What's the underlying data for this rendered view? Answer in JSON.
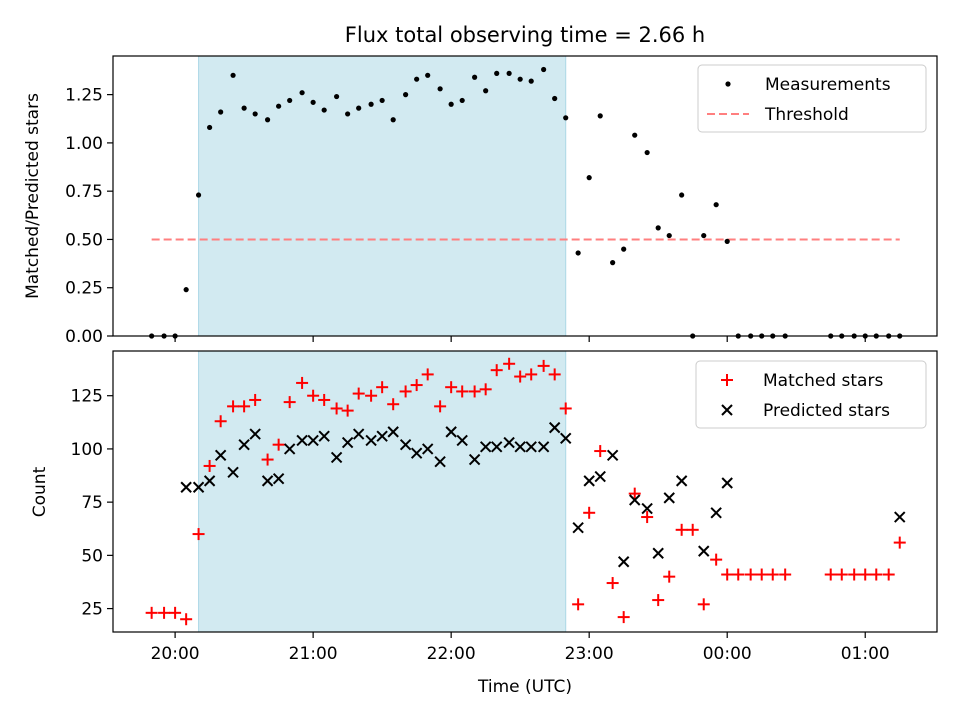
{
  "chart_data": {
    "type": "scatter",
    "title": "Flux total observing time = 2.66 h",
    "xlabel": "Time (UTC)",
    "x_unit": "hours UTC (values past 24 are after midnight)",
    "xlim": [
      19.55,
      25.52
    ],
    "xticks": [
      {
        "value": 20,
        "label": "20:00"
      },
      {
        "value": 21,
        "label": "21:00"
      },
      {
        "value": 22,
        "label": "22:00"
      },
      {
        "value": 23,
        "label": "23:00"
      },
      {
        "value": 24,
        "label": "00:00"
      },
      {
        "value": 25,
        "label": "01:00"
      }
    ],
    "observing_window": [
      20.17,
      22.83
    ],
    "shade_color": "#add8e6",
    "top_panel": {
      "ylabel": "Matched/Predicted stars",
      "ylim": [
        0,
        1.45
      ],
      "yticks": [
        0,
        0.25,
        0.5,
        0.75,
        1.0,
        1.25
      ],
      "ytick_labels": [
        "0.00",
        "0.25",
        "0.50",
        "0.75",
        "1.00",
        "1.25"
      ],
      "legend_position": "upper right",
      "threshold": {
        "name": "Threshold",
        "value": 0.5,
        "x_range": [
          19.83,
          25.25
        ],
        "color": "#ff7f7f"
      },
      "measurements": {
        "name": "Measurements",
        "color": "#000000",
        "x": [
          19.83,
          19.92,
          20.0,
          20.08,
          20.17,
          20.25,
          20.33,
          20.42,
          20.5,
          20.58,
          20.67,
          20.75,
          20.83,
          20.92,
          21.0,
          21.08,
          21.17,
          21.25,
          21.33,
          21.42,
          21.5,
          21.58,
          21.67,
          21.75,
          21.83,
          21.92,
          22.0,
          22.08,
          22.17,
          22.25,
          22.33,
          22.42,
          22.5,
          22.58,
          22.67,
          22.75,
          22.83,
          22.92,
          23.0,
          23.08,
          23.17,
          23.25,
          23.33,
          23.42,
          23.5,
          23.58,
          23.67,
          23.75,
          23.83,
          23.92,
          24.0,
          24.08,
          24.17,
          24.25,
          24.33,
          24.42,
          24.75,
          24.83,
          24.92,
          25.0,
          25.08,
          25.17,
          25.25
        ],
        "y": [
          0,
          0,
          0,
          0.24,
          0.73,
          1.08,
          1.16,
          1.35,
          1.18,
          1.15,
          1.12,
          1.19,
          1.22,
          1.26,
          1.21,
          1.17,
          1.24,
          1.15,
          1.18,
          1.2,
          1.22,
          1.12,
          1.25,
          1.33,
          1.35,
          1.28,
          1.2,
          1.22,
          1.34,
          1.27,
          1.36,
          1.36,
          1.33,
          1.32,
          1.38,
          1.23,
          1.13,
          0.43,
          0.82,
          1.14,
          0.38,
          0.45,
          1.04,
          0.95,
          0.56,
          0.52,
          0.73,
          0,
          0.52,
          0.68,
          0.49,
          0,
          0,
          0,
          0,
          0,
          0,
          0,
          0,
          0,
          0,
          0,
          0
        ]
      }
    },
    "bottom_panel": {
      "ylabel": "Count",
      "ylim": [
        14,
        146
      ],
      "yticks": [
        25,
        50,
        75,
        100,
        125
      ],
      "ytick_labels": [
        "25",
        "50",
        "75",
        "100",
        "125"
      ],
      "legend_position": "upper right",
      "series": [
        {
          "name": "Matched stars",
          "marker": "plus",
          "color": "#ff0000",
          "x": [
            19.83,
            19.92,
            20.0,
            20.08,
            20.17,
            20.25,
            20.33,
            20.42,
            20.5,
            20.58,
            20.67,
            20.75,
            20.83,
            20.92,
            21.0,
            21.08,
            21.17,
            21.25,
            21.33,
            21.42,
            21.5,
            21.58,
            21.67,
            21.75,
            21.83,
            21.92,
            22.0,
            22.08,
            22.17,
            22.25,
            22.33,
            22.42,
            22.5,
            22.58,
            22.67,
            22.75,
            22.83,
            22.92,
            23.0,
            23.08,
            23.17,
            23.25,
            23.33,
            23.42,
            23.5,
            23.58,
            23.67,
            23.75,
            23.83,
            23.92,
            24.0,
            24.08,
            24.17,
            24.25,
            24.33,
            24.42,
            24.75,
            24.83,
            24.92,
            25.0,
            25.08,
            25.17,
            25.25
          ],
          "y": [
            23,
            23,
            23,
            20,
            60,
            92,
            113,
            120,
            120,
            123,
            95,
            102,
            122,
            131,
            125,
            123,
            119,
            118,
            126,
            125,
            129,
            121,
            127,
            130,
            135,
            120,
            129,
            127,
            127,
            128,
            137,
            140,
            134,
            135,
            139,
            135,
            119,
            27,
            70,
            99,
            37,
            21,
            79,
            68,
            29,
            40,
            62,
            62,
            27,
            48,
            41,
            41,
            41,
            41,
            41,
            41,
            41,
            41,
            41,
            41,
            41,
            41,
            56
          ]
        },
        {
          "name": "Predicted stars",
          "marker": "x",
          "color": "#000000",
          "x": [
            20.08,
            20.17,
            20.25,
            20.33,
            20.42,
            20.5,
            20.58,
            20.67,
            20.75,
            20.83,
            20.92,
            21.0,
            21.08,
            21.17,
            21.25,
            21.33,
            21.42,
            21.5,
            21.58,
            21.67,
            21.75,
            21.83,
            21.92,
            22.0,
            22.08,
            22.17,
            22.25,
            22.33,
            22.42,
            22.5,
            22.58,
            22.67,
            22.75,
            22.83,
            22.92,
            23.0,
            23.08,
            23.17,
            23.25,
            23.33,
            23.42,
            23.5,
            23.58,
            23.67,
            23.83,
            23.92,
            24.0,
            25.25
          ],
          "y": [
            82,
            82,
            85,
            97,
            89,
            102,
            107,
            85,
            86,
            100,
            104,
            104,
            106,
            96,
            103,
            107,
            104,
            106,
            108,
            102,
            98,
            100,
            94,
            108,
            104,
            95,
            101,
            101,
            103,
            101,
            101,
            101,
            110,
            105,
            63,
            85,
            87,
            97,
            47,
            76,
            72,
            51,
            77,
            85,
            52,
            70,
            84,
            68
          ]
        }
      ]
    }
  }
}
